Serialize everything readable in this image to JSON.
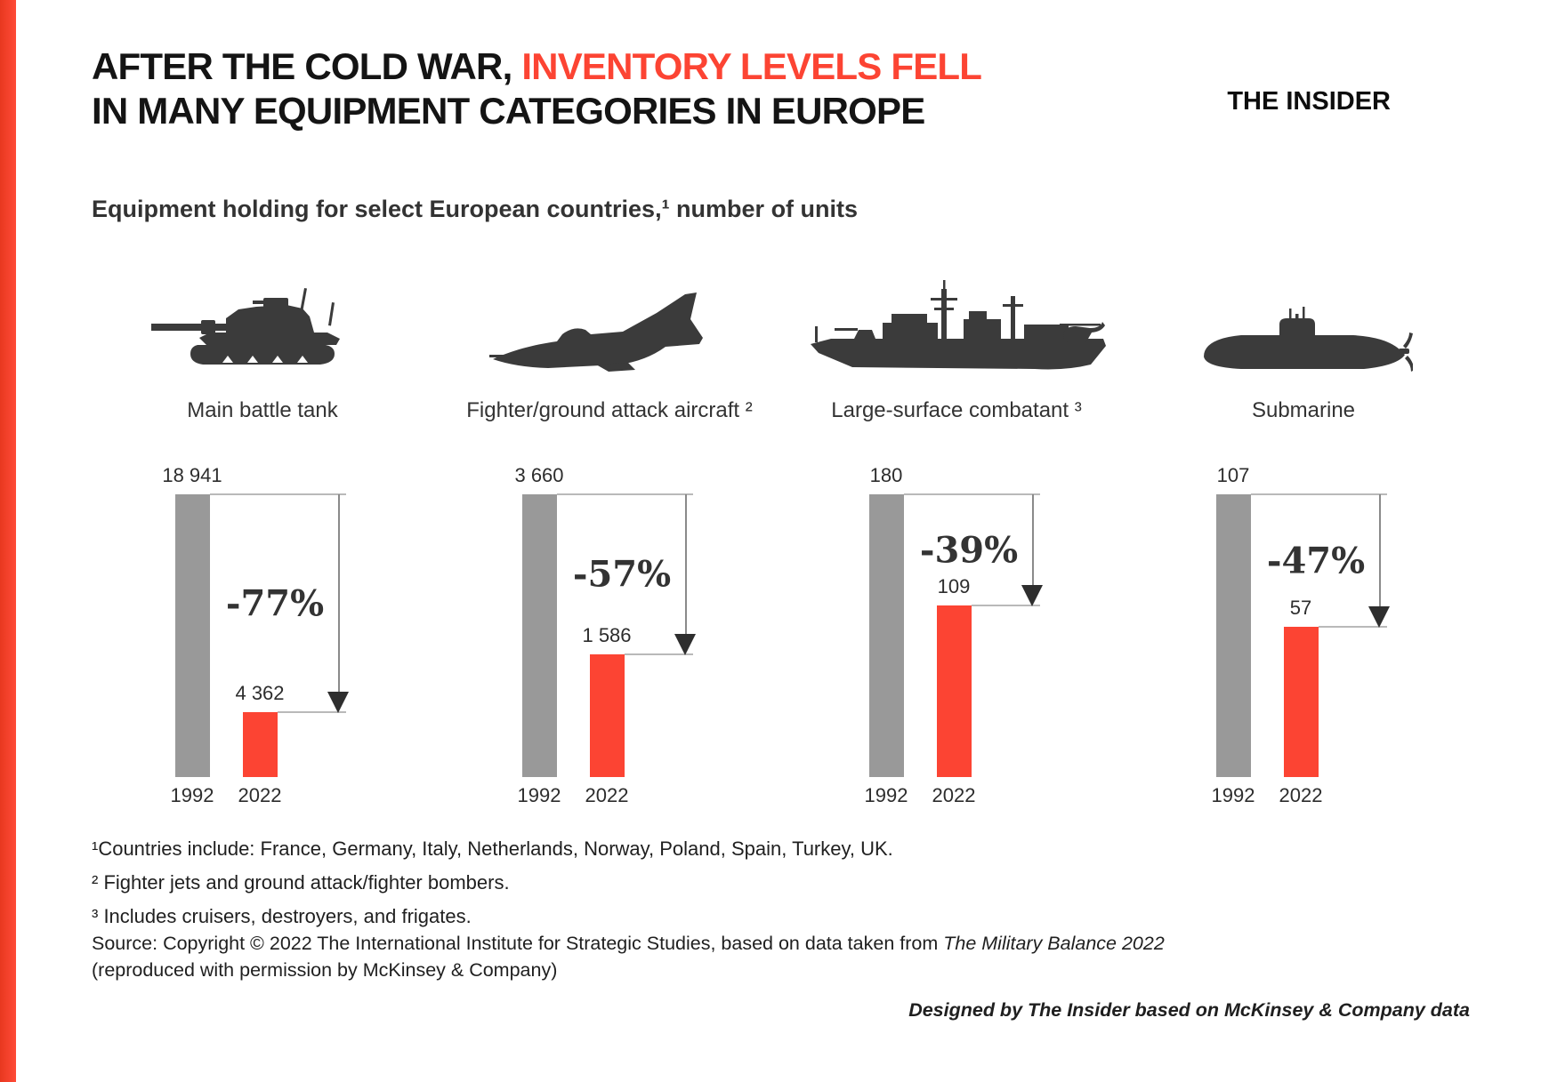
{
  "header": {
    "title_line1_black": "AFTER THE COLD WAR, ",
    "title_line1_red": "INVENTORY LEVELS FELL",
    "title_line2": "IN MANY EQUIPMENT CATEGORIES IN EUROPE",
    "logo": "THE INSIDER",
    "subtitle": "Equipment holding for select European countries,¹ number of units"
  },
  "chart_data": {
    "type": "bar",
    "title": "Equipment holding for select European countries, number of units",
    "categories": [
      "Main battle tank",
      "Fighter/ground attack aircraft",
      "Large-surface combatant",
      "Submarine"
    ],
    "series": [
      {
        "name": "1992",
        "color": "#999999",
        "values": [
          18941,
          3660,
          180,
          107
        ]
      },
      {
        "name": "2022",
        "color": "#FC4433",
        "values": [
          4362,
          1586,
          109,
          57
        ]
      }
    ],
    "change_labels": [
      "-77%",
      "-57%",
      "-39%",
      "-47%"
    ],
    "grid": false,
    "legend_position": "none",
    "value_labels_shown": true
  },
  "charts": [
    {
      "icon": "tank-icon",
      "label": "Main battle tank",
      "value_1992_label": "18 941",
      "value_2022_label": "4 362",
      "change_label": "-77%"
    },
    {
      "icon": "fighter-jet-icon",
      "label": "Fighter/ground attack aircraft ²",
      "value_1992_label": "3 660",
      "value_2022_label": "1 586",
      "change_label": "-57%"
    },
    {
      "icon": "warship-icon",
      "label": "Large-surface combatant ³",
      "value_1992_label": "180",
      "value_2022_label": "109",
      "change_label": "-39%"
    },
    {
      "icon": "submarine-icon",
      "label": "Submarine",
      "value_1992_label": "107",
      "value_2022_label": "57",
      "change_label": "-47%"
    }
  ],
  "footnotes": [
    "¹Countries include: France, Germany, Italy, Netherlands, Norway, Poland, Spain, Turkey, UK.",
    "² Fighter jets and ground attack/fighter bombers.",
    "³ Includes cruisers, destroyers, and frigates."
  ],
  "source": {
    "prefix": "Source: Copyright © 2022 The International Institute for Strategic Studies, based on data taken from ",
    "italic": "The Military Balance 2022",
    "line2": "(reproduced with permission by McKinsey & Company)"
  },
  "designed_by": "Designed by The Insider based on McKinsey & Company data",
  "colors": {
    "accent_red": "#FC4433",
    "bar_gray": "#999999",
    "icon_dark": "#3B3B3B"
  }
}
